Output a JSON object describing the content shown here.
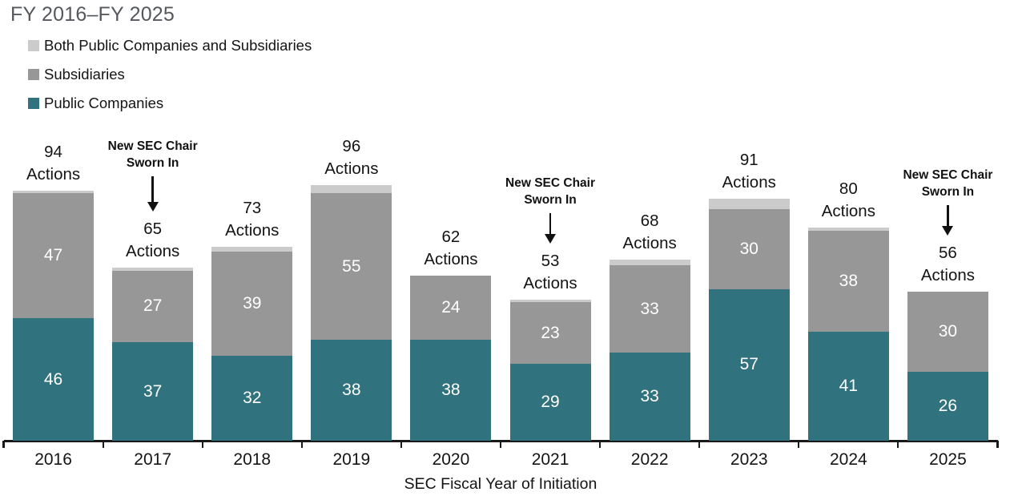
{
  "title": "FY 2016–FY 2025",
  "legend": [
    {
      "label": "Both Public Companies and Subsidiaries",
      "color": "#cbcbcb"
    },
    {
      "label": "Subsidiaries",
      "color": "#979797"
    },
    {
      "label": "Public Companies",
      "color": "#31727f"
    }
  ],
  "chart_data": {
    "type": "bar",
    "stacked": true,
    "title": "FY 2016–FY 2025",
    "xlabel": "SEC Fiscal Year of Initiation",
    "ylabel": "",
    "ylim": [
      0,
      96
    ],
    "grid": false,
    "legend_position": "top-left",
    "categories": [
      "2016",
      "2017",
      "2018",
      "2019",
      "2020",
      "2021",
      "2022",
      "2023",
      "2024",
      "2025"
    ],
    "series": [
      {
        "name": "Public Companies",
        "color": "#31727f",
        "labeled": true,
        "values": [
          46,
          37,
          32,
          38,
          38,
          29,
          33,
          57,
          41,
          26
        ]
      },
      {
        "name": "Subsidiaries",
        "color": "#979797",
        "labeled": true,
        "values": [
          47,
          27,
          39,
          55,
          24,
          23,
          33,
          30,
          38,
          30
        ]
      },
      {
        "name": "Both Public Companies and Subsidiaries",
        "color": "#cbcbcb",
        "labeled": false,
        "values": [
          1,
          1,
          2,
          3,
          0,
          1,
          2,
          4,
          1,
          0
        ]
      }
    ],
    "totals": [
      94,
      65,
      73,
      96,
      62,
      53,
      68,
      91,
      80,
      56
    ],
    "total_label_suffix": "Actions",
    "annotations": [
      {
        "category": "2017",
        "text": "New SEC Chair\nSworn In",
        "arrow_len": 44
      },
      {
        "category": "2021",
        "text": "New SEC Chair\nSworn In",
        "arrow_len": 38
      },
      {
        "category": "2025",
        "text": "New SEC Chair\nSworn In",
        "arrow_len": 38
      }
    ]
  }
}
